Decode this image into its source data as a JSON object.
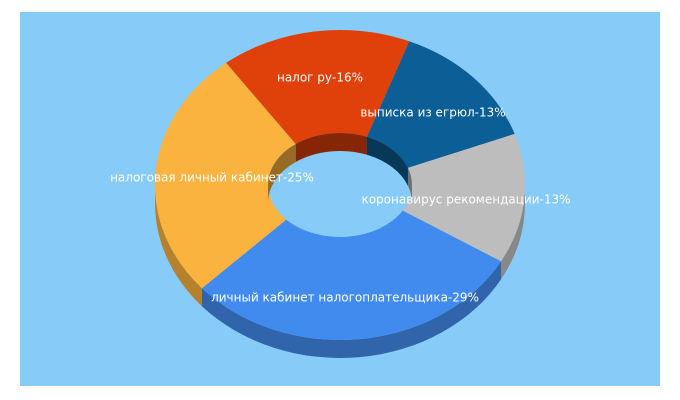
{
  "chart_data": {
    "type": "donut3d",
    "values": [
      16,
      13,
      13,
      29,
      25
    ],
    "value_labels": [
      "налог ру-16%",
      "выписка из егрюл-13%",
      "коронавирус рекомендации-13%",
      "личный кабинет налогоплательщика-29%",
      "налоговая личный кабинет-25%"
    ],
    "colors": [
      "#e0400a",
      "#0b5e96",
      "#bdbdbd",
      "#428bee",
      "#fbb33f"
    ]
  }
}
